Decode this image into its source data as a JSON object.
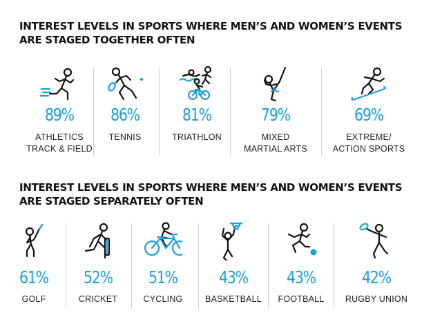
{
  "colors": {
    "accent": "#1aa0db",
    "text": "#111111",
    "divider": "#d0d0d0"
  },
  "chart_data": [
    {
      "type": "table",
      "title": [
        "INTEREST LEVELS IN SPORTS WHERE MEN’S AND WOMEN’S EVENTS",
        "ARE STAGED TOGETHER OFTEN"
      ],
      "unit": "%",
      "categories": [
        [
          "ATHLETICS",
          "TRACK & FIELD"
        ],
        [
          "TENNIS"
        ],
        [
          "TRIATHLON"
        ],
        [
          "MIXED",
          "MARTIAL ARTS"
        ],
        [
          "EXTREME/",
          "ACTION SPORTS"
        ]
      ],
      "values": [
        89,
        86,
        81,
        79,
        69
      ],
      "labels": [
        "89%",
        "86%",
        "81%",
        "79%",
        "69%"
      ],
      "icons": [
        "sprinter-icon",
        "tennis-player-icon",
        "triathlete-icon",
        "martial-artist-icon",
        "snowboarder-icon"
      ]
    },
    {
      "type": "table",
      "title": [
        "INTEREST LEVELS IN SPORTS WHERE MEN’S AND WOMEN’S EVENTS",
        "ARE STAGED SEPARATELY OFTEN"
      ],
      "unit": "%",
      "categories": [
        [
          "GOLF"
        ],
        [
          "CRICKET"
        ],
        [
          "CYCLING"
        ],
        [
          "BASKETBALL"
        ],
        [
          "FOOTBALL"
        ],
        [
          "RUGBY UNION"
        ]
      ],
      "values": [
        61,
        52,
        51,
        43,
        43,
        42
      ],
      "labels": [
        "61%",
        "52%",
        "51%",
        "43%",
        "43%",
        "42%"
      ],
      "icons": [
        "golfer-icon",
        "cricketer-icon",
        "cyclist-icon",
        "basketball-player-icon",
        "footballer-icon",
        "rugby-player-icon"
      ]
    }
  ]
}
